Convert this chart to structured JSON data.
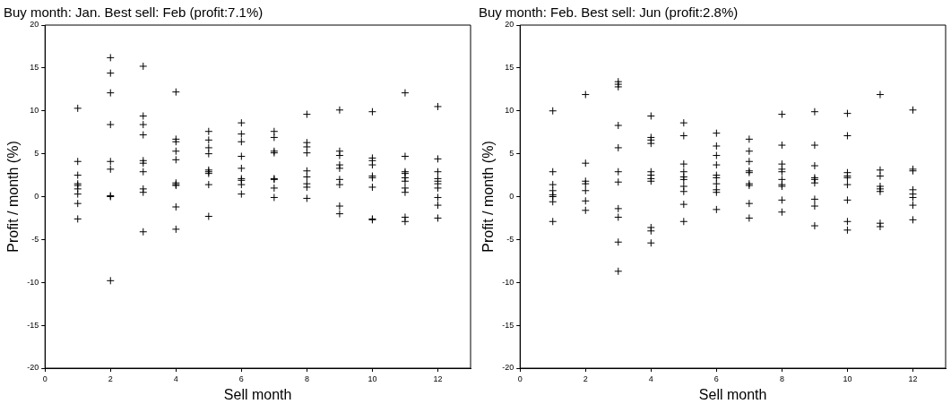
{
  "chart_data": [
    {
      "type": "scatter",
      "title": "Buy month: Jan. Best sell: Feb (profit:7.1%)",
      "xlabel": "Sell month",
      "ylabel": "Profit / month (%)",
      "xlim": [
        0,
        13
      ],
      "xticks": [
        0,
        2,
        4,
        6,
        8,
        10,
        12
      ],
      "ylim": [
        -20,
        20
      ],
      "yticks": [
        -20,
        -15,
        -10,
        -5,
        0,
        5,
        10,
        15,
        20
      ],
      "grid": false,
      "marker": "cross",
      "legend": false,
      "series": [
        {
          "color": "#000000",
          "x": [
            1,
            1,
            1,
            1,
            1,
            1,
            1,
            1,
            1,
            2,
            2,
            2,
            2,
            2,
            2,
            2,
            2,
            2,
            3,
            3,
            3,
            3,
            3,
            3,
            3,
            3,
            3,
            3,
            4,
            4,
            4,
            4,
            4,
            4,
            4,
            4,
            4,
            4,
            5,
            5,
            5,
            5,
            5,
            5,
            5,
            5,
            5,
            6,
            6,
            6,
            6,
            6,
            6,
            6,
            6,
            6,
            7,
            7,
            7,
            7,
            7,
            7,
            7,
            7,
            8,
            8,
            8,
            8,
            8,
            8,
            8,
            8,
            8,
            9,
            9,
            9,
            9,
            9,
            9,
            9,
            9,
            9,
            10,
            10,
            10,
            10,
            10,
            10,
            10,
            10,
            10,
            11,
            11,
            11,
            11,
            11,
            11,
            11,
            11,
            11,
            11,
            12,
            12,
            12,
            12,
            12,
            12,
            12,
            12,
            12,
            12
          ],
          "values": [
            10.3,
            4.1,
            2.5,
            1.5,
            1.3,
            0.9,
            0.3,
            -0.8,
            -2.6,
            16.2,
            14.4,
            12.1,
            8.4,
            4.1,
            3.2,
            0.1,
            0.0,
            -9.8,
            15.2,
            9.4,
            8.4,
            7.2,
            4.2,
            3.9,
            2.9,
            0.9,
            0.5,
            -4.1,
            12.2,
            6.7,
            6.4,
            5.3,
            4.3,
            1.6,
            1.4,
            1.3,
            -1.2,
            -3.8,
            7.6,
            6.6,
            5.7,
            5.0,
            3.1,
            2.9,
            2.7,
            1.4,
            -2.3,
            8.6,
            7.3,
            6.4,
            4.7,
            3.3,
            2.1,
            1.9,
            1.4,
            0.3,
            7.6,
            6.9,
            5.3,
            5.1,
            2.1,
            2.0,
            1.0,
            -0.1,
            9.6,
            6.3,
            5.8,
            5.1,
            3.0,
            2.3,
            1.5,
            1.1,
            -0.2,
            10.1,
            5.3,
            4.8,
            3.7,
            3.3,
            2.0,
            1.4,
            -1.1,
            -2.0,
            9.9,
            4.5,
            4.2,
            3.7,
            2.4,
            2.2,
            1.1,
            -2.6,
            -2.7,
            12.1,
            4.7,
            2.9,
            2.7,
            2.2,
            1.8,
            1.0,
            0.5,
            -2.4,
            -2.9,
            10.5,
            4.4,
            2.9,
            2.1,
            1.8,
            1.5,
            1.0,
            -0.1,
            -1.0,
            -2.5
          ]
        }
      ]
    },
    {
      "type": "scatter",
      "title": "Buy month: Feb. Best sell: Jun (profit:2.8%)",
      "xlabel": "Sell month",
      "ylabel": "Profit / month (%)",
      "xlim": [
        0,
        13
      ],
      "xticks": [
        0,
        2,
        4,
        6,
        8,
        10,
        12
      ],
      "ylim": [
        -20,
        20
      ],
      "yticks": [
        -20,
        -15,
        -10,
        -5,
        0,
        5,
        10,
        15,
        20
      ],
      "grid": false,
      "marker": "cross",
      "legend": false,
      "series": [
        {
          "color": "#000000",
          "x": [
            1,
            1,
            1,
            1,
            1,
            1,
            1,
            1,
            2,
            2,
            2,
            2,
            2,
            2,
            2,
            3,
            3,
            3,
            3,
            3,
            3,
            3,
            3,
            3,
            3,
            3,
            4,
            4,
            4,
            4,
            4,
            4,
            4,
            4,
            4,
            4,
            4,
            5,
            5,
            5,
            5,
            5,
            5,
            5,
            5,
            5,
            5,
            6,
            6,
            6,
            6,
            6,
            6,
            6,
            6,
            6,
            6,
            7,
            7,
            7,
            7,
            7,
            7,
            7,
            7,
            7,
            8,
            8,
            8,
            8,
            8,
            8,
            8,
            8,
            8,
            8,
            9,
            9,
            9,
            9,
            9,
            9,
            9,
            9,
            9,
            10,
            10,
            10,
            10,
            10,
            10,
            10,
            10,
            10,
            11,
            11,
            11,
            11,
            11,
            11,
            11,
            11,
            12,
            12,
            12,
            12,
            12,
            12,
            12,
            12
          ],
          "values": [
            10.0,
            2.9,
            1.4,
            0.7,
            0.2,
            0.0,
            -0.6,
            -2.9,
            11.9,
            3.9,
            1.8,
            1.5,
            0.7,
            -0.5,
            -1.6,
            13.4,
            13.1,
            12.8,
            8.3,
            5.7,
            2.9,
            1.7,
            -1.4,
            -2.4,
            -5.3,
            -8.7,
            9.4,
            6.9,
            6.6,
            6.2,
            2.9,
            2.5,
            2.1,
            1.8,
            -3.6,
            -4.0,
            -5.4,
            8.6,
            7.1,
            3.8,
            2.9,
            2.3,
            2.0,
            1.2,
            0.6,
            -0.9,
            -2.9,
            7.4,
            5.9,
            4.8,
            3.7,
            2.5,
            2.2,
            1.5,
            0.8,
            0.5,
            -1.5,
            6.7,
            5.3,
            4.1,
            3.0,
            2.8,
            1.5,
            1.3,
            -0.8,
            -2.5,
            9.6,
            6.0,
            3.8,
            3.2,
            2.9,
            2.0,
            1.4,
            1.2,
            -0.4,
            -1.8,
            9.9,
            6.0,
            3.6,
            2.2,
            2.0,
            1.6,
            -0.3,
            -1.1,
            -3.4,
            9.7,
            7.1,
            2.8,
            2.4,
            2.2,
            1.4,
            -0.4,
            -2.9,
            -3.9,
            11.9,
            3.1,
            2.4,
            1.2,
            0.9,
            0.6,
            -3.1,
            -3.5,
            10.1,
            3.2,
            3.0,
            0.8,
            0.3,
            -0.1,
            -1.0,
            -2.7
          ]
        }
      ]
    }
  ]
}
